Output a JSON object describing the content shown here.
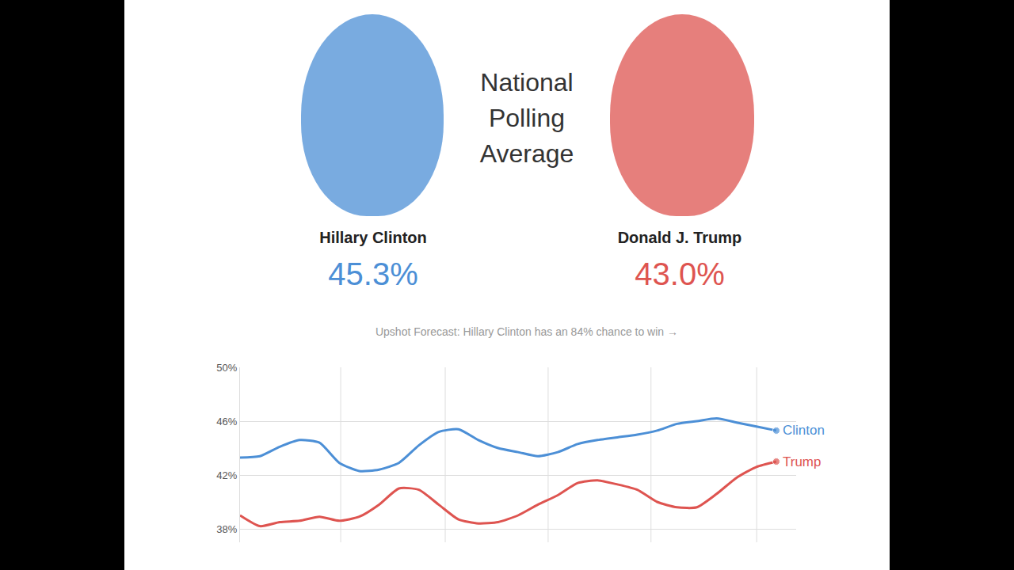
{
  "header": {
    "title": "National Polling Average",
    "candidates": [
      {
        "name": "Hillary Clinton",
        "label": "45.3%",
        "color": "#4c8fd6"
      },
      {
        "name": "Donald J. Trump",
        "label": "43.0%",
        "color": "#de5450"
      }
    ],
    "forecast": "Upshot Forecast: Hillary Clinton has an 84% chance to win →"
  },
  "chart_data": {
    "type": "line",
    "categories": [
      null,
      null,
      null,
      null,
      null,
      null,
      null,
      null,
      null,
      null,
      null,
      null,
      null,
      null,
      null,
      null,
      null,
      null,
      null,
      null,
      null,
      null,
      null,
      null,
      null,
      null,
      null,
      null
    ],
    "series": [
      {
        "name": "Clinton",
        "color": "#4c8fd6",
        "values": [
          43.3,
          43.4,
          44.1,
          44.6,
          44.4,
          42.9,
          42.3,
          42.4,
          42.9,
          44.2,
          45.2,
          45.4,
          44.6,
          44.0,
          43.7,
          43.4,
          43.7,
          44.3,
          44.6,
          44.8,
          45.0,
          45.3,
          45.8,
          46.0,
          46.2,
          45.9,
          45.6,
          45.3
        ]
      },
      {
        "name": "Trump",
        "color": "#de5450",
        "values": [
          39.0,
          38.2,
          38.5,
          38.6,
          38.9,
          38.6,
          38.9,
          39.8,
          41.0,
          40.9,
          39.8,
          38.7,
          38.4,
          38.5,
          39.0,
          39.8,
          40.5,
          41.4,
          41.6,
          41.3,
          40.9,
          40.0,
          39.6,
          39.6,
          40.6,
          41.8,
          42.6,
          43.0
        ]
      }
    ],
    "ylim": [
      37,
      50
    ],
    "yticks": [
      {
        "value": 38,
        "label": "38%"
      },
      {
        "value": 42,
        "label": "42%"
      },
      {
        "value": 46,
        "label": "46%"
      },
      {
        "value": 50,
        "label": "50%"
      }
    ],
    "grid": true,
    "tick_labels": "y"
  }
}
